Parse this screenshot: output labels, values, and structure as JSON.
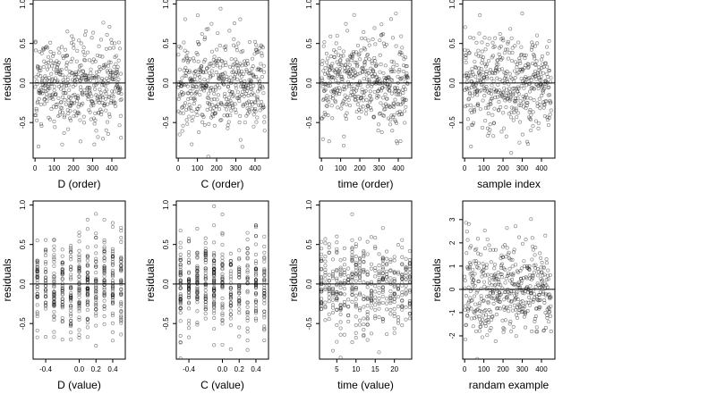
{
  "chart_data": [
    {
      "type": "scatter",
      "xlabel": "D (order)",
      "ylabel": "residuals",
      "xlim": [
        -10,
        470
      ],
      "ylim": [
        -0.95,
        1.05
      ],
      "xticks": [
        0,
        100,
        200,
        300,
        400
      ],
      "yticks": [
        -0.5,
        0.0,
        0.5,
        1.0
      ],
      "yticklabels": [
        "-0.5",
        "0.0",
        "0.5",
        "1.0"
      ],
      "hline": 0,
      "n_points": 450,
      "x_kind": "order",
      "x_max": 450,
      "y_sd": 0.3
    },
    {
      "type": "scatter",
      "xlabel": "C (order)",
      "ylabel": "residuals",
      "xlim": [
        -10,
        470
      ],
      "ylim": [
        -0.95,
        1.05
      ],
      "xticks": [
        0,
        100,
        200,
        300,
        400
      ],
      "yticks": [
        -0.5,
        0.0,
        0.5,
        1.0
      ],
      "yticklabels": [
        "-0.5",
        "0.0",
        "0.5",
        "1.0"
      ],
      "hline": 0,
      "n_points": 450,
      "x_kind": "order",
      "x_max": 450,
      "y_sd": 0.3
    },
    {
      "type": "scatter",
      "xlabel": "time (order)",
      "ylabel": "residuals",
      "xlim": [
        -10,
        470
      ],
      "ylim": [
        -0.95,
        1.05
      ],
      "xticks": [
        0,
        100,
        200,
        300,
        400
      ],
      "yticks": [
        -0.5,
        0.0,
        0.5,
        1.0
      ],
      "yticklabels": [
        "-0.5",
        "0.0",
        "0.5",
        "1.0"
      ],
      "hline": 0,
      "n_points": 450,
      "x_kind": "order",
      "x_max": 450,
      "y_sd": 0.3
    },
    {
      "type": "scatter",
      "xlabel": "sample index",
      "ylabel": "residuals",
      "xlim": [
        -10,
        470
      ],
      "ylim": [
        -0.95,
        1.05
      ],
      "xticks": [
        0,
        100,
        200,
        300,
        400
      ],
      "yticks": [
        -0.5,
        0.0,
        0.5,
        1.0
      ],
      "yticklabels": [
        "-0.5",
        "0.0",
        "0.5",
        "1.0"
      ],
      "hline": 0,
      "n_points": 450,
      "x_kind": "order",
      "x_max": 450,
      "y_sd": 0.3
    },
    {
      "type": "scatter",
      "xlabel": "D (value)",
      "ylabel": "residuals",
      "xlim": [
        -0.55,
        0.55
      ],
      "ylim": [
        -0.95,
        1.05
      ],
      "xticks": [
        -0.4,
        0.0,
        0.2,
        0.4
      ],
      "xticklabels": [
        "-0.4",
        "0.0",
        "0.2",
        "0.4"
      ],
      "yticks": [
        -0.5,
        0.0,
        0.5,
        1.0
      ],
      "yticklabels": [
        "-0.5",
        "0.0",
        "0.5",
        "1.0"
      ],
      "hline": 0,
      "n_points": 450,
      "x_kind": "columns",
      "x_columns": [
        -0.5,
        -0.4,
        -0.3,
        -0.2,
        -0.1,
        0.0,
        0.1,
        0.2,
        0.3,
        0.4,
        0.5
      ],
      "y_sd": 0.3
    },
    {
      "type": "scatter",
      "xlabel": "C (value)",
      "ylabel": "residuals",
      "xlim": [
        -0.55,
        0.55
      ],
      "ylim": [
        -0.95,
        1.05
      ],
      "xticks": [
        -0.4,
        0.0,
        0.2,
        0.4
      ],
      "xticklabels": [
        "-0.4",
        "0.0",
        "0.2",
        "0.4"
      ],
      "yticks": [
        -0.5,
        0.0,
        0.5,
        1.0
      ],
      "yticklabels": [
        "-0.5",
        "0.0",
        "0.5",
        "1.0"
      ],
      "hline": 0,
      "n_points": 450,
      "x_kind": "columns",
      "x_columns": [
        -0.5,
        -0.4,
        -0.3,
        -0.2,
        -0.1,
        0.0,
        0.1,
        0.2,
        0.3,
        0.4,
        0.5
      ],
      "y_sd": 0.3
    },
    {
      "type": "scatter",
      "xlabel": "time (value)",
      "ylabel": "residuals",
      "xlim": [
        0.5,
        24.5
      ],
      "ylim": [
        -0.95,
        1.05
      ],
      "xticks": [
        5,
        10,
        15,
        20
      ],
      "xticklabels": [
        "5",
        "10",
        "15",
        "20"
      ],
      "yticks": [
        -0.5,
        0.0,
        0.5,
        1.0
      ],
      "yticklabels": [
        "-0.5",
        "0.0",
        "0.5",
        "1.0"
      ],
      "hline": 0,
      "n_points": 450,
      "x_kind": "columns",
      "x_columns": [
        1,
        2,
        3,
        4,
        5,
        6,
        7,
        8,
        9,
        10,
        11,
        12,
        13,
        14,
        15,
        16,
        17,
        18,
        19,
        20,
        21,
        22,
        23,
        24
      ],
      "y_sd": 0.3
    },
    {
      "type": "scatter",
      "xlabel": "randam example",
      "ylabel": "residuals",
      "xlim": [
        -10,
        470
      ],
      "ylim": [
        -3.0,
        3.8
      ],
      "xticks": [
        0,
        100,
        200,
        300,
        400
      ],
      "yticks": [
        -2,
        -1,
        0,
        1,
        2,
        3
      ],
      "yticklabels": [
        "-2",
        "-1",
        "0",
        "1",
        "2",
        "3"
      ],
      "hline": 0,
      "n_points": 450,
      "x_kind": "order",
      "x_max": 450,
      "y_sd": 1.0
    }
  ]
}
